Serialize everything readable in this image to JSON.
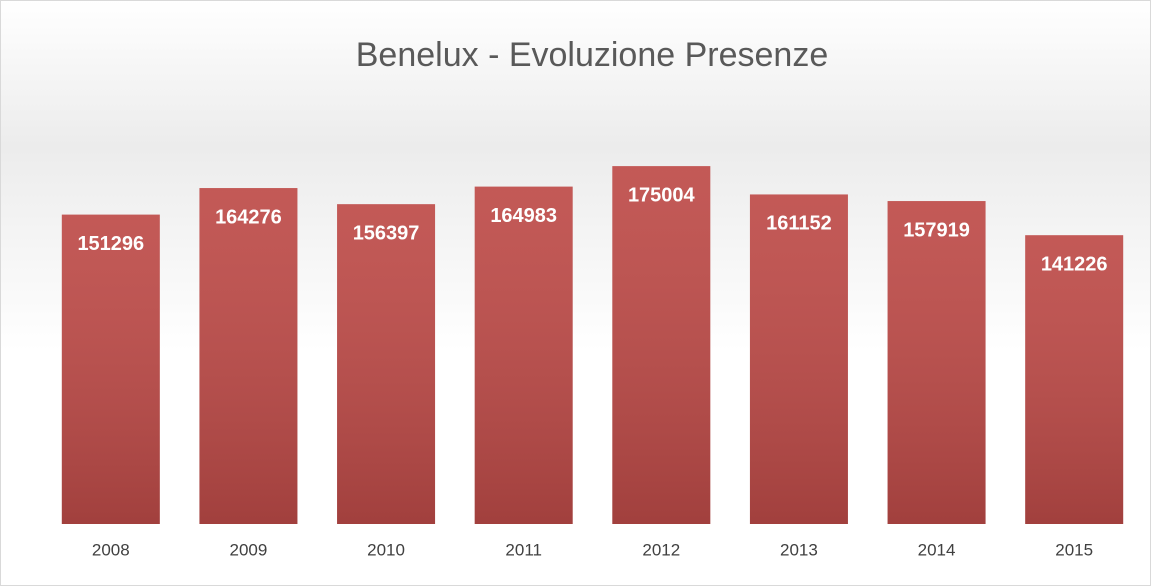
{
  "chart_data": {
    "type": "bar",
    "title": "Benelux - Evoluzione Presenze",
    "categories": [
      "2008",
      "2009",
      "2010",
      "2011",
      "2012",
      "2013",
      "2014",
      "2015"
    ],
    "values": [
      151296,
      164276,
      156397,
      164983,
      175004,
      161152,
      157919,
      141226
    ],
    "color": "#be4b48",
    "ylim": [
      0,
      200000
    ]
  }
}
